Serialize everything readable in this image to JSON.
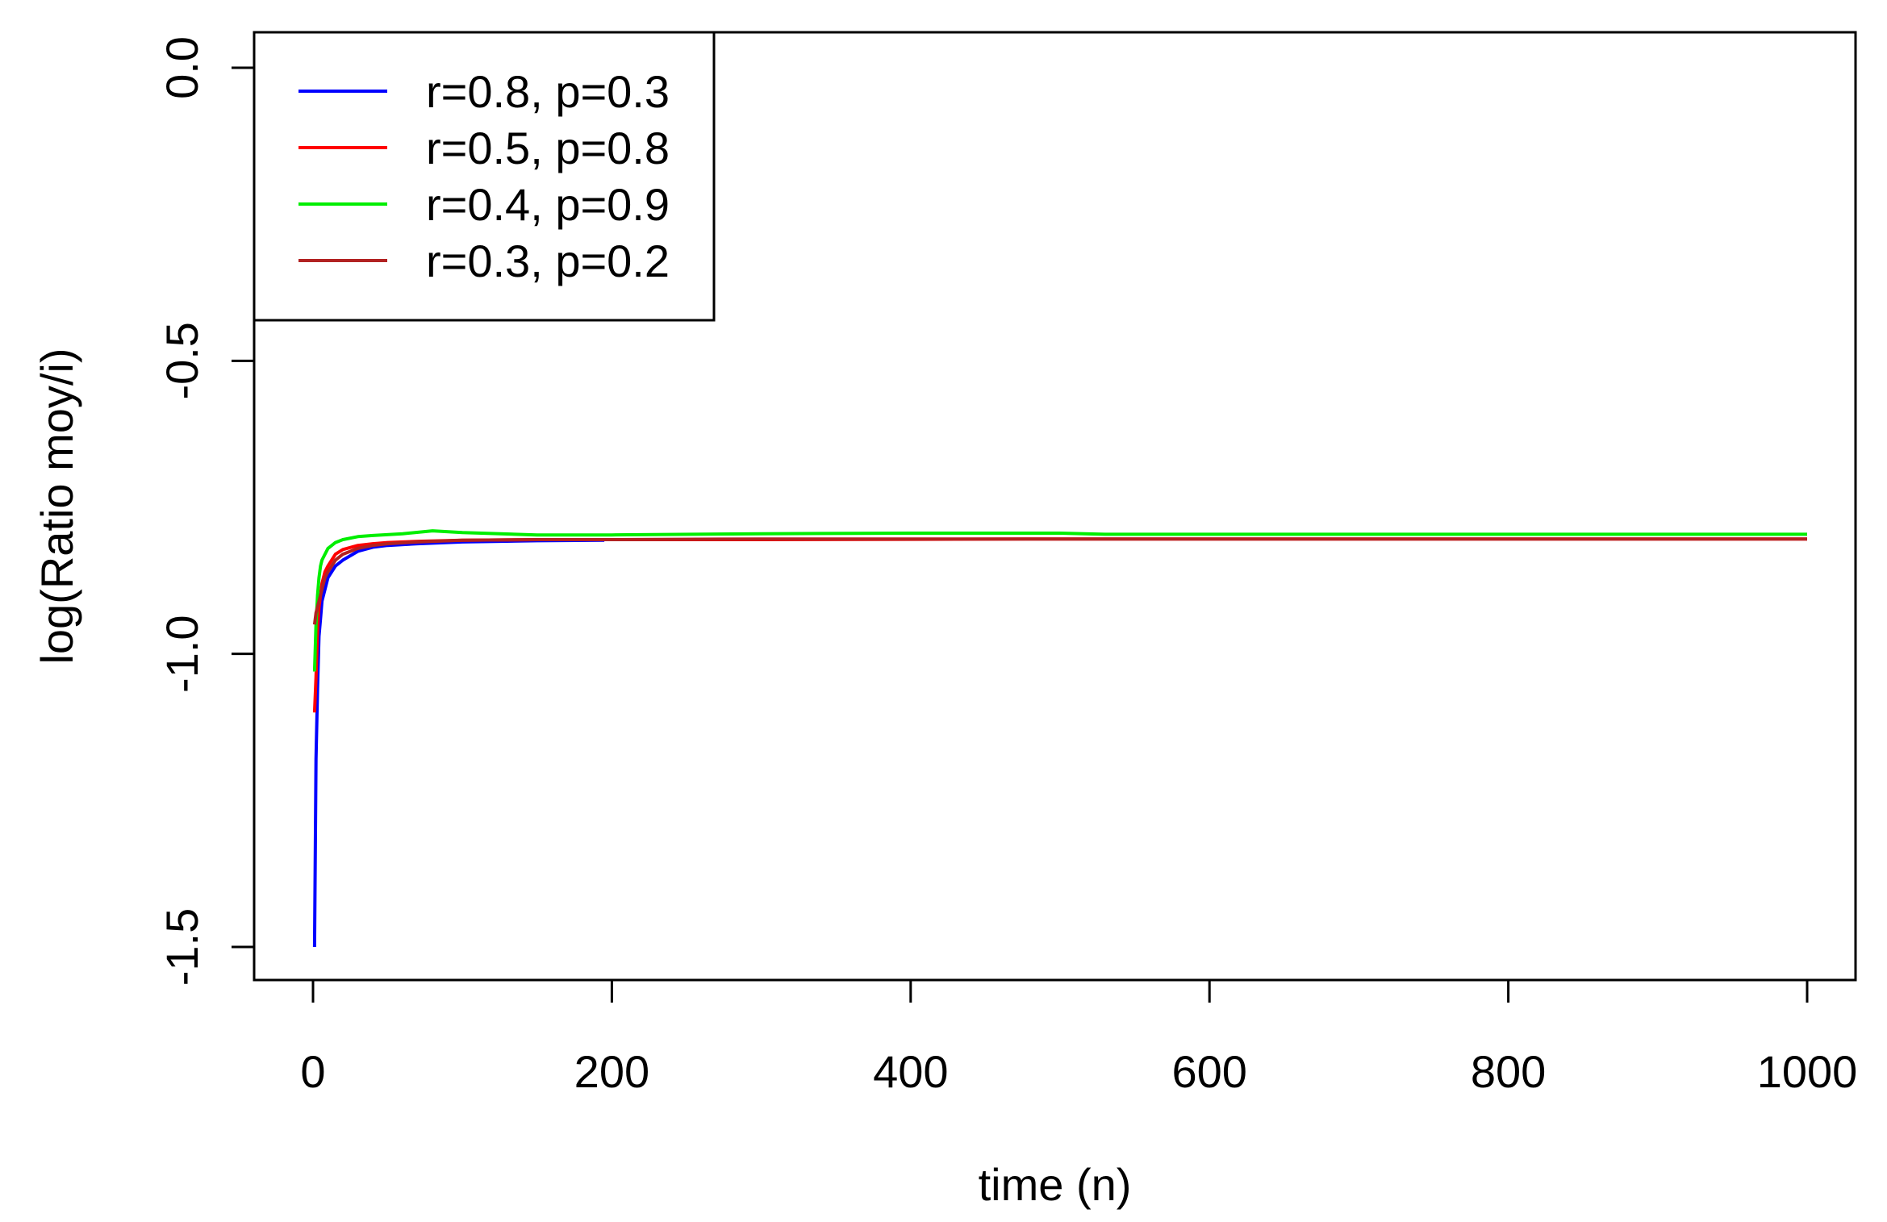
{
  "chart_data": {
    "type": "line",
    "title": "",
    "xlabel": "time (n)",
    "ylabel": "log(Ratio moy/i)",
    "xlim": [
      0,
      1000
    ],
    "ylim": [
      -1.5,
      0.0
    ],
    "x_ticks": [
      0,
      200,
      400,
      600,
      800,
      1000
    ],
    "y_ticks": [
      -1.5,
      -1.0,
      -0.5,
      0.0
    ],
    "x_tick_labels": [
      "0",
      "200",
      "400",
      "600",
      "800",
      "1000"
    ],
    "y_tick_labels": [
      "-1.5",
      "-1.0",
      "-0.5",
      "0.0"
    ],
    "grid": false,
    "legend_position": "top-left",
    "series": [
      {
        "name": "r=0.8, p=0.3",
        "color": "#0000FF",
        "x": [
          1,
          2,
          3,
          4,
          5,
          6,
          8,
          10,
          15,
          20,
          30,
          40,
          50,
          70,
          100,
          150,
          195
        ],
        "y": [
          -1.5,
          -1.18,
          -1.06,
          -0.97,
          -0.94,
          -0.91,
          -0.89,
          -0.87,
          -0.85,
          -0.84,
          -0.825,
          -0.818,
          -0.815,
          -0.812,
          -0.809,
          -0.807,
          -0.806
        ]
      },
      {
        "name": "r=0.5, p=0.8",
        "color": "#FF0000",
        "x": [
          1,
          2,
          3,
          4,
          5,
          6,
          8,
          10,
          15,
          20,
          30,
          40,
          50,
          70,
          100,
          150,
          200,
          300,
          500,
          700,
          1000
        ],
        "y": [
          -1.1,
          -1.04,
          -0.96,
          -0.92,
          -0.9,
          -0.88,
          -0.86,
          -0.85,
          -0.83,
          -0.822,
          -0.815,
          -0.812,
          -0.81,
          -0.808,
          -0.806,
          -0.805,
          -0.805,
          -0.805,
          -0.804,
          -0.804,
          -0.804
        ]
      },
      {
        "name": "r=0.4, p=0.9",
        "color": "#00EE00",
        "x": [
          1,
          2,
          3,
          4,
          5,
          6,
          8,
          10,
          15,
          20,
          30,
          40,
          60,
          80,
          100,
          150,
          200,
          300,
          400,
          500,
          530,
          600,
          800,
          1000
        ],
        "y": [
          -1.03,
          -0.95,
          -0.9,
          -0.87,
          -0.85,
          -0.84,
          -0.83,
          -0.82,
          -0.81,
          -0.805,
          -0.8,
          -0.798,
          -0.795,
          -0.79,
          -0.793,
          -0.797,
          -0.797,
          -0.795,
          -0.794,
          -0.794,
          -0.796,
          -0.796,
          -0.796,
          -0.796
        ]
      },
      {
        "name": "r=0.3, p=0.2",
        "color": "#B22222",
        "x": [
          1,
          2,
          3,
          4,
          5,
          6,
          8,
          10,
          15,
          20,
          30,
          40,
          50,
          70,
          100,
          150,
          200,
          300,
          500,
          700,
          1000
        ],
        "y": [
          -0.95,
          -0.93,
          -0.92,
          -0.91,
          -0.9,
          -0.89,
          -0.87,
          -0.86,
          -0.84,
          -0.83,
          -0.82,
          -0.815,
          -0.812,
          -0.809,
          -0.806,
          -0.805,
          -0.805,
          -0.804,
          -0.804,
          -0.804,
          -0.804
        ]
      }
    ]
  }
}
